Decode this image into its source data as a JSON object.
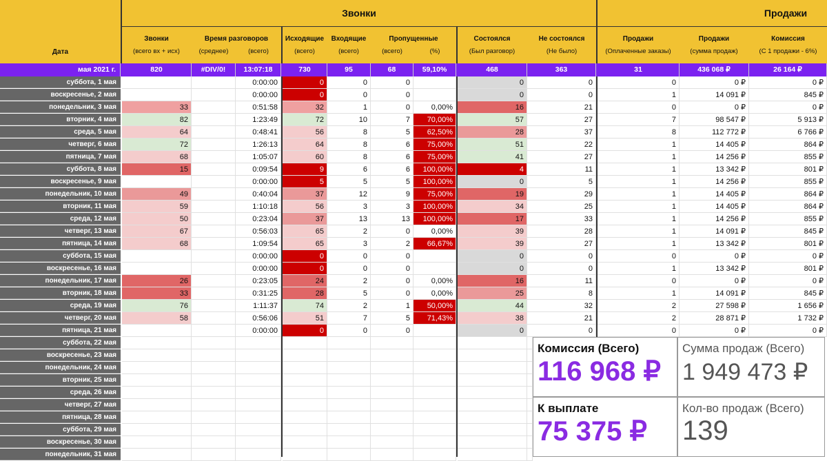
{
  "header": {
    "date_label": "Дата",
    "group_calls": "Звонки",
    "group_sales": "Продажи",
    "columns": [
      {
        "title": "Звонки",
        "note": "(всего вх + исх)"
      },
      {
        "title": "Время разговоров",
        "note_a": "(среднее)",
        "note_b": "(всего)"
      },
      {
        "title": "Исходящие",
        "note": "(всего)"
      },
      {
        "title": "Входящие",
        "note": "(всего)"
      },
      {
        "title": "Пропущенные",
        "note_a": "(всего)",
        "note_b": "(%)"
      },
      {
        "title": "Состоялся",
        "note": "(Был разговор)"
      },
      {
        "title": "Не состоялся",
        "note": "(Не было)"
      },
      {
        "title": "Продажи",
        "note": "(Оплаченные заказы)"
      },
      {
        "title": "Продажи",
        "note": "(сумма продаж)"
      },
      {
        "title": "Комиссия",
        "note": "(С 1 продажи - 6%)"
      }
    ]
  },
  "summary": [
    "мая 2021 г.",
    "820",
    "#DIV/0!",
    "13:07:18",
    "730",
    "95",
    "68",
    "59,10%",
    "468",
    "363",
    "31",
    "436 068 ₽",
    "26 164 ₽"
  ],
  "rows": [
    {
      "date": "суббота, 1 мая",
      "calls": "",
      "avg": "",
      "total": "0:00:00",
      "out": "0",
      "in": "0",
      "miss": "0",
      "pct": "",
      "ok": "0",
      "fail": "0",
      "sales": "0",
      "sum": "0 ₽",
      "com": "0 ₽",
      "cc": "",
      "oc": "#cc0000",
      "pc": "",
      "okc": "#d9d9d9"
    },
    {
      "date": "воскресенье, 2 мая",
      "calls": "",
      "avg": "",
      "total": "0:00:00",
      "out": "0",
      "in": "0",
      "miss": "0",
      "pct": "",
      "ok": "0",
      "fail": "0",
      "sales": "1",
      "sum": "14 091 ₽",
      "com": "845 ₽",
      "cc": "",
      "oc": "#cc0000",
      "pc": "",
      "okc": "#d9d9d9"
    },
    {
      "date": "понедельник, 3 мая",
      "calls": "33",
      "avg": "",
      "total": "0:51:58",
      "out": "32",
      "in": "1",
      "miss": "0",
      "pct": "0,00%",
      "ok": "16",
      "fail": "21",
      "sales": "0",
      "sum": "0 ₽",
      "com": "0 ₽",
      "cc": "#efa0a0",
      "oc": "#efa0a0",
      "pc": "",
      "okc": "#e06666"
    },
    {
      "date": "вторник, 4 мая",
      "calls": "82",
      "avg": "",
      "total": "1:23:49",
      "out": "72",
      "in": "10",
      "miss": "7",
      "pct": "70,00%",
      "ok": "57",
      "fail": "27",
      "sales": "7",
      "sum": "98 547 ₽",
      "com": "5 913 ₽",
      "cc": "#d9ead3",
      "oc": "#d9ead3",
      "pc": "#cc0000",
      "okc": "#d9ead3"
    },
    {
      "date": "среда, 5 мая",
      "calls": "64",
      "avg": "",
      "total": "0:48:41",
      "out": "56",
      "in": "8",
      "miss": "5",
      "pct": "62,50%",
      "ok": "28",
      "fail": "37",
      "sales": "8",
      "sum": "112 772 ₽",
      "com": "6 766 ₽",
      "cc": "#f4cccc",
      "oc": "#f4cccc",
      "pc": "#cc0000",
      "okc": "#ea9999"
    },
    {
      "date": "четверг, 6 мая",
      "calls": "72",
      "avg": "",
      "total": "1:26:13",
      "out": "64",
      "in": "8",
      "miss": "6",
      "pct": "75,00%",
      "ok": "51",
      "fail": "22",
      "sales": "1",
      "sum": "14 405 ₽",
      "com": "864 ₽",
      "cc": "#d9ead3",
      "oc": "#f4cccc",
      "pc": "#cc0000",
      "okc": "#d9ead3"
    },
    {
      "date": "пятница, 7 мая",
      "calls": "68",
      "avg": "",
      "total": "1:05:07",
      "out": "60",
      "in": "8",
      "miss": "6",
      "pct": "75,00%",
      "ok": "41",
      "fail": "27",
      "sales": "1",
      "sum": "14 256 ₽",
      "com": "855 ₽",
      "cc": "#f4cccc",
      "oc": "#f4cccc",
      "pc": "#cc0000",
      "okc": "#d9ead3"
    },
    {
      "date": "суббота, 8 мая",
      "calls": "15",
      "avg": "",
      "total": "0:09:54",
      "out": "9",
      "in": "6",
      "miss": "6",
      "pct": "100,00%",
      "ok": "4",
      "fail": "11",
      "sales": "1",
      "sum": "13 342 ₽",
      "com": "801 ₽",
      "cc": "#e06666",
      "oc": "#cc0000",
      "pc": "#cc0000",
      "okc": "#cc0000"
    },
    {
      "date": "воскресенье, 9 мая",
      "calls": "",
      "avg": "",
      "total": "0:00:00",
      "out": "5",
      "in": "5",
      "miss": "5",
      "pct": "100,00%",
      "ok": "0",
      "fail": "5",
      "sales": "1",
      "sum": "14 256 ₽",
      "com": "855 ₽",
      "cc": "",
      "oc": "#cc0000",
      "pc": "#cc0000",
      "okc": "#d9d9d9"
    },
    {
      "date": "понедельник, 10 мая",
      "calls": "49",
      "avg": "",
      "total": "0:40:04",
      "out": "37",
      "in": "12",
      "miss": "9",
      "pct": "75,00%",
      "ok": "19",
      "fail": "29",
      "sales": "1",
      "sum": "14 405 ₽",
      "com": "864 ₽",
      "cc": "#ea9999",
      "oc": "#ea9999",
      "pc": "#cc0000",
      "okc": "#e06666"
    },
    {
      "date": "вторник, 11 мая",
      "calls": "59",
      "avg": "",
      "total": "1:10:18",
      "out": "56",
      "in": "3",
      "miss": "3",
      "pct": "100,00%",
      "ok": "34",
      "fail": "25",
      "sales": "1",
      "sum": "14 405 ₽",
      "com": "864 ₽",
      "cc": "#f4cccc",
      "oc": "#f4cccc",
      "pc": "#cc0000",
      "okc": "#f4cccc"
    },
    {
      "date": "среда, 12 мая",
      "calls": "50",
      "avg": "",
      "total": "0:23:04",
      "out": "37",
      "in": "13",
      "miss": "13",
      "pct": "100,00%",
      "ok": "17",
      "fail": "33",
      "sales": "1",
      "sum": "14 256 ₽",
      "com": "855 ₽",
      "cc": "#f4cccc",
      "oc": "#ea9999",
      "pc": "#cc0000",
      "okc": "#e06666"
    },
    {
      "date": "четверг, 13 мая",
      "calls": "67",
      "avg": "",
      "total": "0:56:03",
      "out": "65",
      "in": "2",
      "miss": "0",
      "pct": "0,00%",
      "ok": "39",
      "fail": "28",
      "sales": "1",
      "sum": "14 091 ₽",
      "com": "845 ₽",
      "cc": "#f4cccc",
      "oc": "#f4cccc",
      "pc": "",
      "okc": "#f4cccc"
    },
    {
      "date": "пятница, 14 мая",
      "calls": "68",
      "avg": "",
      "total": "1:09:54",
      "out": "65",
      "in": "3",
      "miss": "2",
      "pct": "66,67%",
      "ok": "39",
      "fail": "27",
      "sales": "1",
      "sum": "13 342 ₽",
      "com": "801 ₽",
      "cc": "#f4cccc",
      "oc": "#f4cccc",
      "pc": "#cc0000",
      "okc": "#f4cccc"
    },
    {
      "date": "суббота, 15 мая",
      "calls": "",
      "avg": "",
      "total": "0:00:00",
      "out": "0",
      "in": "0",
      "miss": "0",
      "pct": "",
      "ok": "0",
      "fail": "0",
      "sales": "0",
      "sum": "0 ₽",
      "com": "0 ₽",
      "cc": "",
      "oc": "#cc0000",
      "pc": "",
      "okc": "#d9d9d9"
    },
    {
      "date": "воскресенье, 16 мая",
      "calls": "",
      "avg": "",
      "total": "0:00:00",
      "out": "0",
      "in": "0",
      "miss": "0",
      "pct": "",
      "ok": "0",
      "fail": "0",
      "sales": "1",
      "sum": "13 342 ₽",
      "com": "801 ₽",
      "cc": "",
      "oc": "#cc0000",
      "pc": "",
      "okc": "#d9d9d9"
    },
    {
      "date": "понедельник, 17 мая",
      "calls": "26",
      "avg": "",
      "total": "0:23:05",
      "out": "24",
      "in": "2",
      "miss": "0",
      "pct": "0,00%",
      "ok": "16",
      "fail": "11",
      "sales": "0",
      "sum": "0 ₽",
      "com": "0 ₽",
      "cc": "#e06666",
      "oc": "#e06666",
      "pc": "",
      "okc": "#e06666"
    },
    {
      "date": "вторник, 18 мая",
      "calls": "33",
      "avg": "",
      "total": "0:31:25",
      "out": "28",
      "in": "5",
      "miss": "0",
      "pct": "0,00%",
      "ok": "25",
      "fail": "8",
      "sales": "1",
      "sum": "14 091 ₽",
      "com": "845 ₽",
      "cc": "#e06666",
      "oc": "#e06666",
      "pc": "",
      "okc": "#ea9999"
    },
    {
      "date": "среда, 19 мая",
      "calls": "76",
      "avg": "",
      "total": "1:11:37",
      "out": "74",
      "in": "2",
      "miss": "1",
      "pct": "50,00%",
      "ok": "44",
      "fail": "32",
      "sales": "2",
      "sum": "27 598 ₽",
      "com": "1 656 ₽",
      "cc": "#d9ead3",
      "oc": "#d9ead3",
      "pc": "#cc0000",
      "okc": "#d9ead3"
    },
    {
      "date": "четверг, 20 мая",
      "calls": "58",
      "avg": "",
      "total": "0:56:06",
      "out": "51",
      "in": "7",
      "miss": "5",
      "pct": "71,43%",
      "ok": "38",
      "fail": "21",
      "sales": "2",
      "sum": "28 871 ₽",
      "com": "1 732 ₽",
      "cc": "#f4cccc",
      "oc": "#f4cccc",
      "pc": "#cc0000",
      "okc": "#f4cccc"
    },
    {
      "date": "пятница, 21 мая",
      "calls": "",
      "avg": "",
      "total": "0:00:00",
      "out": "0",
      "in": "0",
      "miss": "0",
      "pct": "",
      "ok": "0",
      "fail": "0",
      "sales": "0",
      "sum": "0 ₽",
      "com": "0 ₽",
      "cc": "",
      "oc": "#cc0000",
      "pc": "",
      "okc": "#d9d9d9"
    }
  ],
  "empty_dates": [
    "суббота, 22 мая",
    "воскресенье, 23 мая",
    "понедельник, 24 мая",
    "вторник, 25 мая",
    "среда, 26 мая",
    "четверг, 27 мая",
    "пятница, 28 мая",
    "суббота, 29 мая",
    "воскресенье, 30 мая",
    "понедельник, 31 мая"
  ],
  "cards": {
    "commission_label": "Комиссия (Всего)",
    "commission_value": "116 968 ₽",
    "sales_sum_label": "Сумма продаж (Всего)",
    "sales_sum_value": "1 949 473 ₽",
    "payout_label": "К выплате",
    "payout_value": "75 375 ₽",
    "sales_count_label": "Кол-во продаж (Всего)",
    "sales_count_value": "139"
  },
  "colors": {
    "header": "#f1c232",
    "summary": "#7b22f0",
    "date_cell": "#666666",
    "accent_purple": "#8a2be2"
  }
}
